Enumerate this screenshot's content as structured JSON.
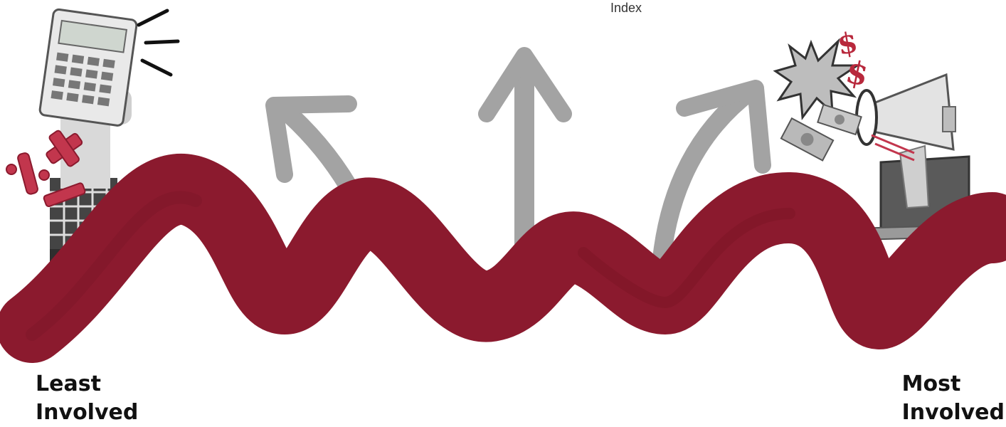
{
  "top_label": "Index",
  "left_label": {
    "line1": "Least",
    "line2": "Involved"
  },
  "right_label": {
    "line1": "Most",
    "line2": "Involved"
  },
  "illustrations": {
    "left": "calculator-in-hand-icon",
    "right": "megaphone-laptop-icon",
    "math_symbols": "math-symbols-icon",
    "money": "dollar-bills-icon",
    "dollar_signs": "dollar-sign-icon",
    "burst": "starburst-icon"
  },
  "colors": {
    "wave": "#8b1a2e",
    "arrows": "#a3a3a3",
    "accent_red": "#b8283c",
    "text": "#111111"
  }
}
